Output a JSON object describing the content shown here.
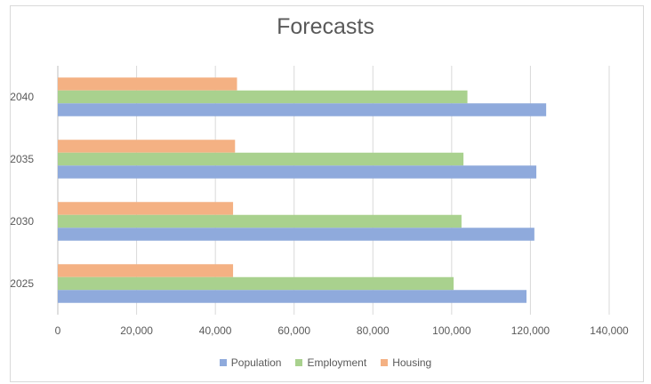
{
  "chart_data": {
    "type": "bar",
    "orientation": "horizontal",
    "title": "Forecasts",
    "xlabel": "",
    "ylabel": "",
    "categories": [
      "2025",
      "2030",
      "2035",
      "2040"
    ],
    "series": [
      {
        "name": "Population",
        "color": "#8faadc",
        "values": [
          119000,
          121000,
          121500,
          124000
        ]
      },
      {
        "name": "Employment",
        "color": "#a9d18e",
        "values": [
          100500,
          102500,
          103000,
          104000
        ]
      },
      {
        "name": "Housing",
        "color": "#f4b183",
        "values": [
          44500,
          44500,
          45000,
          45500
        ]
      }
    ],
    "xlim": [
      0,
      140000
    ],
    "x_ticks": [
      "0",
      "20,000",
      "40,000",
      "60,000",
      "80,000",
      "100,000",
      "120,000",
      "140,000"
    ],
    "x_tick_values": [
      0,
      20000,
      40000,
      60000,
      80000,
      100000,
      120000,
      140000
    ],
    "grid": "vertical",
    "legend_position": "bottom"
  }
}
